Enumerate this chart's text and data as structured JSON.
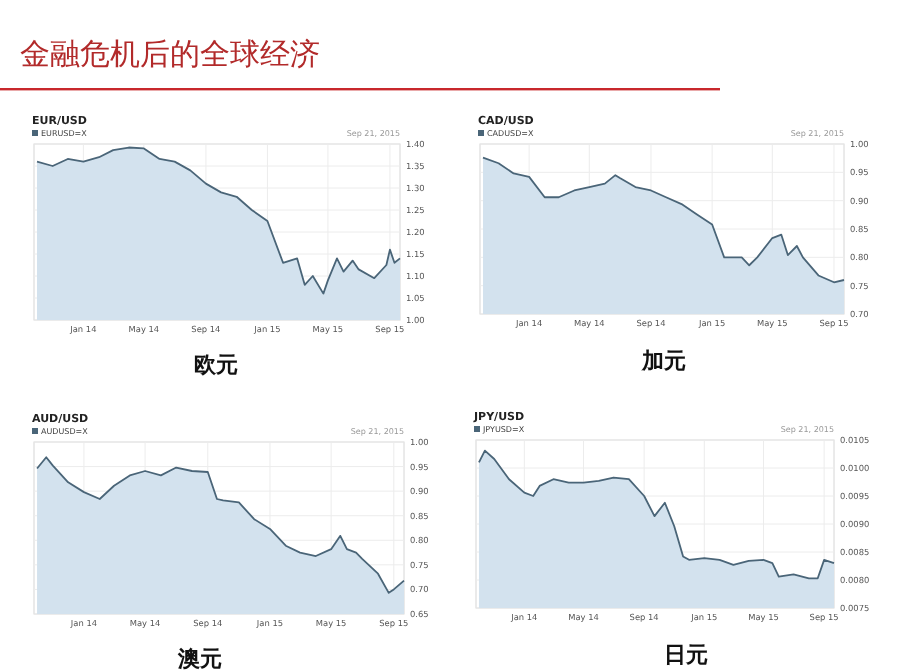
{
  "chart_data": [
    {
      "type": "area",
      "title": "EUR/USD",
      "xlabel": "欧元",
      "annotations": [
        "金融危机后的全球经济",
        "Sep 21, 2015"
      ],
      "legend": "top left",
      "grid": true,
      "xlim": [
        "2013-09-25",
        "2015-09-21"
      ],
      "xticks": [
        {
          "value": "2014-01-01",
          "label": "Jan 14"
        },
        {
          "value": "2014-05-01",
          "label": "May 14"
        },
        {
          "value": "2014-09-01",
          "label": "Sep 14"
        },
        {
          "value": "2015-01-01",
          "label": "Jan 15"
        },
        {
          "value": "2015-05-01",
          "label": "May 15"
        },
        {
          "value": "2015-09-01",
          "label": "Sep 15"
        }
      ],
      "ylim": [
        1.0,
        1.4
      ],
      "yticks": [
        {
          "value": 1.0,
          "label": "1.00"
        },
        {
          "value": 1.05,
          "label": "1.05"
        },
        {
          "value": 1.1,
          "label": "1.10"
        },
        {
          "value": 1.15,
          "label": "1.15"
        },
        {
          "value": 1.2,
          "label": "1.20"
        },
        {
          "value": 1.25,
          "label": "1.25"
        },
        {
          "value": 1.3,
          "label": "1.30"
        },
        {
          "value": 1.35,
          "label": "1.35"
        },
        {
          "value": 1.4,
          "label": "1.40"
        }
      ],
      "series": [
        {
          "name": "EURUSD=X",
          "color": "#4a6578",
          "x": [
            "2013-10-01",
            "2013-11-01",
            "2013-12-01",
            "2014-01-01",
            "2014-02-01",
            "2014-03-01",
            "2014-04-01",
            "2014-05-01",
            "2014-06-01",
            "2014-07-01",
            "2014-08-01",
            "2014-09-01",
            "2014-10-01",
            "2014-11-01",
            "2014-12-01",
            "2015-01-01",
            "2015-02-01",
            "2015-03-01",
            "2015-03-16",
            "2015-04-01",
            "2015-04-22",
            "2015-05-01",
            "2015-05-19",
            "2015-06-01",
            "2015-06-19",
            "2015-07-01",
            "2015-08-01",
            "2015-08-25",
            "2015-09-01",
            "2015-09-10",
            "2015-09-21"
          ],
          "values": [
            1.36,
            1.35,
            1.366,
            1.36,
            1.37,
            1.386,
            1.392,
            1.39,
            1.366,
            1.36,
            1.34,
            1.31,
            1.29,
            1.28,
            1.25,
            1.225,
            1.13,
            1.14,
            1.08,
            1.1,
            1.06,
            1.09,
            1.14,
            1.11,
            1.135,
            1.115,
            1.095,
            1.125,
            1.16,
            1.13,
            1.14
          ]
        }
      ]
    },
    {
      "type": "area",
      "title": "CAD/USD",
      "xlabel": "加元",
      "annotations": [
        "Sep 21, 2015"
      ],
      "legend": "top left",
      "grid": true,
      "xlim": [
        "2013-09-25",
        "2015-09-21"
      ],
      "xticks": [
        {
          "value": "2014-01-01",
          "label": "Jan 14"
        },
        {
          "value": "2014-05-01",
          "label": "May 14"
        },
        {
          "value": "2014-09-01",
          "label": "Sep 14"
        },
        {
          "value": "2015-01-01",
          "label": "Jan 15"
        },
        {
          "value": "2015-05-01",
          "label": "May 15"
        },
        {
          "value": "2015-09-01",
          "label": "Sep 15"
        }
      ],
      "ylim": [
        0.7,
        1.0
      ],
      "yticks": [
        {
          "value": 0.7,
          "label": "0.70"
        },
        {
          "value": 0.75,
          "label": "0.75"
        },
        {
          "value": 0.8,
          "label": "0.80"
        },
        {
          "value": 0.85,
          "label": "0.85"
        },
        {
          "value": 0.9,
          "label": "0.90"
        },
        {
          "value": 0.95,
          "label": "0.95"
        },
        {
          "value": 1.0,
          "label": "1.00"
        }
      ],
      "series": [
        {
          "name": "CADUSD=X",
          "color": "#4a6578",
          "x": [
            "2013-10-01",
            "2013-11-01",
            "2013-12-01",
            "2014-01-01",
            "2014-02-01",
            "2014-03-01",
            "2014-04-01",
            "2014-05-01",
            "2014-06-01",
            "2014-06-22",
            "2014-07-01",
            "2014-08-01",
            "2014-09-01",
            "2014-10-01",
            "2014-11-01",
            "2014-12-01",
            "2015-01-01",
            "2015-01-25",
            "2015-02-01",
            "2015-03-01",
            "2015-03-16",
            "2015-04-01",
            "2015-05-01",
            "2015-05-19",
            "2015-06-01",
            "2015-06-19",
            "2015-07-01",
            "2015-08-01",
            "2015-09-01",
            "2015-09-21"
          ],
          "values": [
            0.976,
            0.966,
            0.948,
            0.942,
            0.906,
            0.906,
            0.918,
            0.924,
            0.93,
            0.945,
            0.94,
            0.924,
            0.918,
            0.906,
            0.894,
            0.876,
            0.858,
            0.8,
            0.8,
            0.8,
            0.786,
            0.8,
            0.834,
            0.84,
            0.804,
            0.82,
            0.8,
            0.768,
            0.756,
            0.76
          ]
        }
      ]
    },
    {
      "type": "area",
      "title": "AUD/USD",
      "xlabel": "澳元",
      "annotations": [
        "Sep 21, 2015"
      ],
      "legend": "top left",
      "grid": true,
      "xlim": [
        "2013-09-25",
        "2015-09-21"
      ],
      "xticks": [
        {
          "value": "2014-01-01",
          "label": "Jan 14"
        },
        {
          "value": "2014-05-01",
          "label": "May 14"
        },
        {
          "value": "2014-09-01",
          "label": "Sep 14"
        },
        {
          "value": "2015-01-01",
          "label": "Jan 15"
        },
        {
          "value": "2015-05-01",
          "label": "May 15"
        },
        {
          "value": "2015-09-01",
          "label": "Sep 15"
        }
      ],
      "ylim": [
        0.65,
        1.0
      ],
      "yticks": [
        {
          "value": 0.65,
          "label": "0.65"
        },
        {
          "value": 0.7,
          "label": "0.70"
        },
        {
          "value": 0.75,
          "label": "0.75"
        },
        {
          "value": 0.8,
          "label": "0.80"
        },
        {
          "value": 0.85,
          "label": "0.85"
        },
        {
          "value": 0.9,
          "label": "0.90"
        },
        {
          "value": 0.95,
          "label": "0.95"
        },
        {
          "value": 1.0,
          "label": "1.00"
        }
      ],
      "series": [
        {
          "name": "AUDUSD=X",
          "color": "#4a6578",
          "x": [
            "2013-10-01",
            "2013-10-19",
            "2013-11-01",
            "2013-12-01",
            "2014-01-01",
            "2014-02-01",
            "2014-03-01",
            "2014-04-01",
            "2014-05-01",
            "2014-06-01",
            "2014-07-01",
            "2014-08-01",
            "2014-09-01",
            "2014-09-19",
            "2014-10-01",
            "2014-11-01",
            "2014-12-01",
            "2015-01-01",
            "2015-02-01",
            "2015-03-01",
            "2015-04-01",
            "2015-05-01",
            "2015-05-19",
            "2015-06-01",
            "2015-06-19",
            "2015-07-01",
            "2015-08-01",
            "2015-08-22",
            "2015-09-01",
            "2015-09-21"
          ],
          "values": [
            0.946,
            0.969,
            0.952,
            0.918,
            0.898,
            0.884,
            0.911,
            0.932,
            0.941,
            0.932,
            0.948,
            0.941,
            0.939,
            0.884,
            0.881,
            0.877,
            0.843,
            0.823,
            0.789,
            0.775,
            0.768,
            0.782,
            0.809,
            0.782,
            0.775,
            0.762,
            0.732,
            0.693,
            0.7,
            0.718
          ]
        }
      ]
    },
    {
      "type": "area",
      "title": "JPY/USD",
      "xlabel": "日元",
      "annotations": [
        "Sep 21, 2015"
      ],
      "legend": "top left",
      "grid": true,
      "xlim": [
        "2013-09-25",
        "2015-09-21"
      ],
      "xticks": [
        {
          "value": "2014-01-01",
          "label": "Jan 14"
        },
        {
          "value": "2014-05-01",
          "label": "May 14"
        },
        {
          "value": "2014-09-01",
          "label": "Sep 14"
        },
        {
          "value": "2015-01-01",
          "label": "Jan 15"
        },
        {
          "value": "2015-05-01",
          "label": "May 15"
        },
        {
          "value": "2015-09-01",
          "label": "Sep 15"
        }
      ],
      "ylim": [
        0.0075,
        0.0105
      ],
      "yticks": [
        {
          "value": 0.0075,
          "label": "0.0075"
        },
        {
          "value": 0.008,
          "label": "0.0080"
        },
        {
          "value": 0.0085,
          "label": "0.0085"
        },
        {
          "value": 0.009,
          "label": "0.0090"
        },
        {
          "value": 0.0095,
          "label": "0.0095"
        },
        {
          "value": 0.01,
          "label": "0.0100"
        },
        {
          "value": 0.0105,
          "label": "0.0105"
        }
      ],
      "series": [
        {
          "name": "JPYUSD=X",
          "color": "#4a6578",
          "x": [
            "2013-10-01",
            "2013-10-13",
            "2013-11-01",
            "2013-12-01",
            "2014-01-01",
            "2014-01-19",
            "2014-02-01",
            "2014-03-01",
            "2014-04-01",
            "2014-05-01",
            "2014-06-01",
            "2014-07-01",
            "2014-08-01",
            "2014-09-01",
            "2014-09-22",
            "2014-10-13",
            "2014-11-01",
            "2014-11-19",
            "2014-12-01",
            "2015-01-01",
            "2015-02-01",
            "2015-03-01",
            "2015-04-01",
            "2015-05-01",
            "2015-05-19",
            "2015-06-01",
            "2015-07-01",
            "2015-08-01",
            "2015-08-19",
            "2015-09-01",
            "2015-09-21"
          ],
          "values": [
            0.0101,
            0.01031,
            0.01016,
            0.0098,
            0.00956,
            0.0095,
            0.00968,
            0.0098,
            0.00974,
            0.00974,
            0.00977,
            0.00983,
            0.0098,
            0.0095,
            0.00914,
            0.00938,
            0.00896,
            0.00842,
            0.00836,
            0.00839,
            0.00836,
            0.00827,
            0.00834,
            0.00836,
            0.0083,
            0.00806,
            0.0081,
            0.00803,
            0.00803,
            0.00836,
            0.0083
          ]
        }
      ]
    }
  ]
}
